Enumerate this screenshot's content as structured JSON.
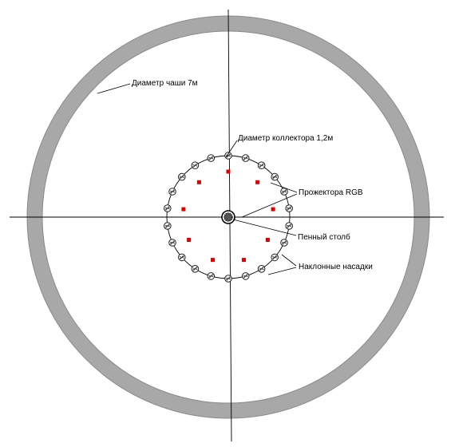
{
  "labels": {
    "bowl_diameter": "Диаметр чаши  7м",
    "collector_diameter": "Диаметр коллектора  1,2м",
    "spotlights": "Прожектора  RGB",
    "foam_column": "Пенный столб",
    "inclined_nozzles": "Наклонные насадки"
  },
  "colors": {
    "bowl_ring": "#a8a8a8",
    "spotlight": "#e00000",
    "line": "#000000"
  },
  "counts": {
    "nozzles": 22,
    "spotlights": 9
  }
}
